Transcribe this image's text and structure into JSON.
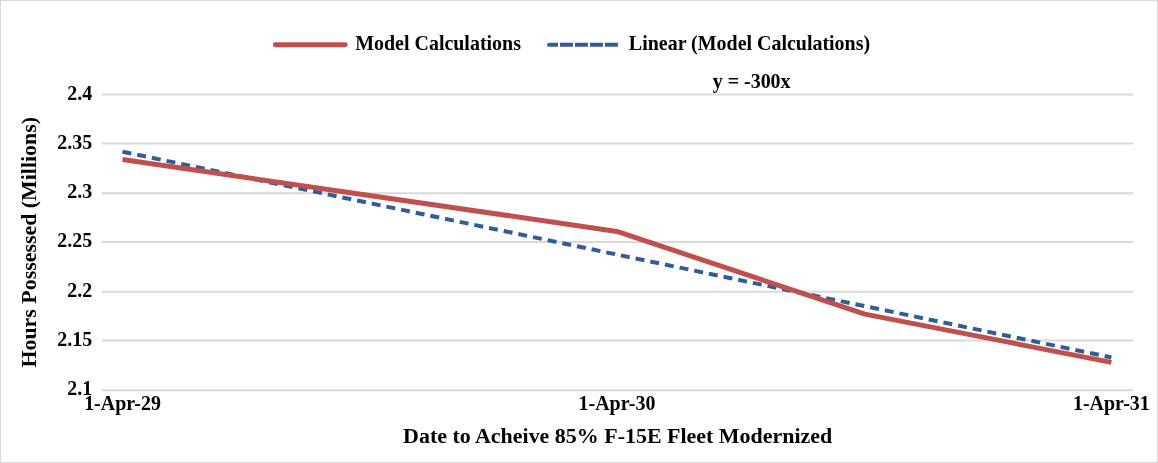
{
  "chart_data": {
    "type": "line",
    "xlabel": "Date to Acheive 85% F-15E Fleet Modernized",
    "ylabel": "Hours Possessed (Millions)",
    "annotations": [
      "y = -300x"
    ],
    "x": [
      "2029-04-01",
      "2030-04-01",
      "2030-10-01",
      "2031-04-01"
    ],
    "series": [
      {
        "name": "Model Calculations",
        "color": "#c0504d",
        "values": [
          2.334,
          2.261,
          2.177,
          2.128
        ]
      },
      {
        "name": "Linear (Model Calculations)",
        "type": "line",
        "color": "#2e5d9a",
        "line_style": "dashed",
        "x": [
          "2029-04-01",
          "2031-04-01"
        ],
        "values": [
          2.342,
          2.133
        ]
      }
    ],
    "xlim": [
      "2029-03-17",
      "2031-04-17"
    ],
    "xticks": [
      {
        "value": "2029-04-01",
        "label": "1-Apr-29"
      },
      {
        "value": "2030-04-01",
        "label": "1-Apr-30"
      },
      {
        "value": "2031-04-01",
        "label": "1-Apr-31"
      }
    ],
    "ylim": [
      2.1,
      2.4
    ],
    "yticks": [
      2.1,
      2.15,
      2.2,
      2.25,
      2.3,
      2.35,
      2.4
    ],
    "grid": "y",
    "legend": "top",
    "marker": "none",
    "line_style": "solid"
  }
}
